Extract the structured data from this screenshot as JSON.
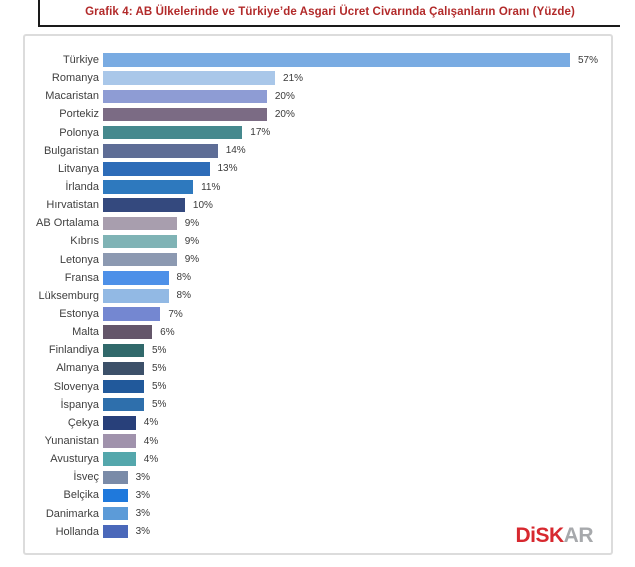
{
  "header": {
    "title": "Grafik 4: AB Ülkelerinde ve Türkiye’de Asgari Ücret Civarında Çalışanların Oranı (Yüzde)"
  },
  "logo": {
    "disk_label": "DiSK",
    "ar_label": "AR",
    "disk_color": "#D7282F",
    "ar_color": "#A7A9AC"
  },
  "chart_data": {
    "type": "bar",
    "orientation": "horizontal",
    "title": "Grafik 4: AB Ülkelerinde ve Türkiye’de Asgari Ücret Civarında Çalışanların Oranı (Yüzde)",
    "categories": [
      "Türkiye",
      "Romanya",
      "Macaristan",
      "Portekiz",
      "Polonya",
      "Bulgaristan",
      "Litvanya",
      "İrlanda",
      "Hırvatistan",
      "AB Ortalama",
      "Kıbrıs",
      "Letonya",
      "Fransa",
      "Lüksemburg",
      "Estonya",
      "Malta",
      "Finlandiya",
      "Almanya",
      "Slovenya",
      "İspanya",
      "Çekya",
      "Yunanistan",
      "Avusturya",
      "İsveç",
      "Belçika",
      "Danimarka",
      "Hollanda"
    ],
    "values": [
      57,
      21,
      20,
      20,
      17,
      14,
      13,
      11,
      10,
      9,
      9,
      9,
      8,
      8,
      7,
      6,
      5,
      5,
      5,
      5,
      4,
      4,
      4,
      3,
      3,
      3,
      3
    ],
    "value_labels": [
      "57%",
      "21%",
      "20%",
      "20%",
      "17%",
      "14%",
      "13%",
      "11%",
      "10%",
      "9%",
      "9%",
      "9%",
      "8%",
      "8%",
      "7%",
      "6%",
      "5%",
      "5%",
      "5%",
      "5%",
      "4%",
      "4%",
      "4%",
      "3%",
      "3%",
      "3%",
      "3%"
    ],
    "value_suffix": "%",
    "xlim": [
      0,
      62
    ],
    "grid": false,
    "legend": false,
    "data_labels_position": "outside-end",
    "bar_colors": [
      "#79ABE2",
      "#A9C7E9",
      "#8E9CD4",
      "#7B6B84",
      "#46898E",
      "#5E6D96",
      "#2D6CB8",
      "#2E79BE",
      "#34497E",
      "#A89EAE",
      "#7FB3B5",
      "#8C99B1",
      "#4D90E8",
      "#92B9E4",
      "#7487D1",
      "#64566A",
      "#31696B",
      "#3C5069",
      "#21599B",
      "#2E6FAC",
      "#28407A",
      "#A092AC",
      "#54A7AC",
      "#7A8BA8",
      "#1F79DC",
      "#5C9BD8",
      "#4A68BA"
    ]
  }
}
